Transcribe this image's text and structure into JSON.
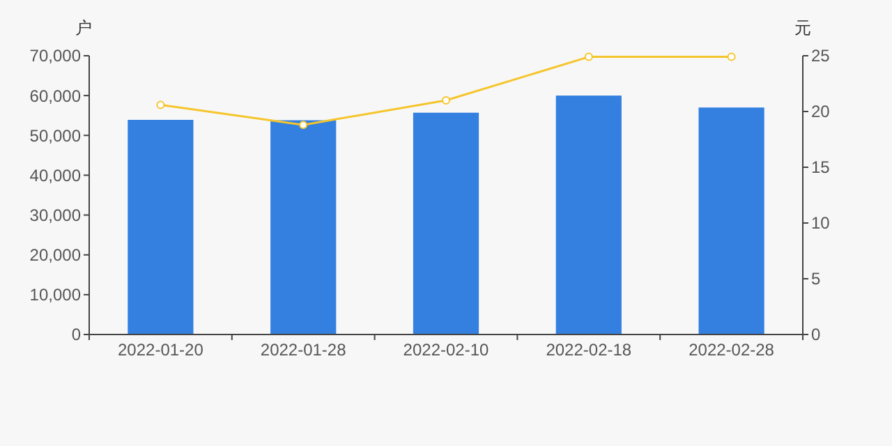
{
  "chart_data": {
    "type": "bar",
    "ylabel": "户",
    "y2label": "元",
    "categories": [
      "2022-01-20",
      "2022-01-28",
      "2022-02-10",
      "2022-02-18",
      "2022-02-28"
    ],
    "series": [
      {
        "color": "#3380e0",
        "values": [
          53900,
          53800,
          55700,
          60000,
          57000
        ]
      },
      {
        "type": "line",
        "axis": "y2",
        "color": "#f5c52c",
        "marker": "circle",
        "values": [
          20.6,
          18.8,
          21.0,
          24.9,
          24.9
        ]
      }
    ],
    "ylim": [
      0,
      70000
    ],
    "yticks": [
      {
        "value": 0,
        "label": "0"
      },
      {
        "value": 10000,
        "label": "10,000"
      },
      {
        "value": 20000,
        "label": "20,000"
      },
      {
        "value": 30000,
        "label": "30,000"
      },
      {
        "value": 40000,
        "label": "40,000"
      },
      {
        "value": 50000,
        "label": "50,000"
      },
      {
        "value": 60000,
        "label": "60,000"
      },
      {
        "value": 70000,
        "label": "70,000"
      }
    ],
    "y2lim": [
      0,
      25
    ],
    "y2ticks": [
      0,
      5,
      10,
      15,
      20,
      25
    ],
    "grid": false
  }
}
